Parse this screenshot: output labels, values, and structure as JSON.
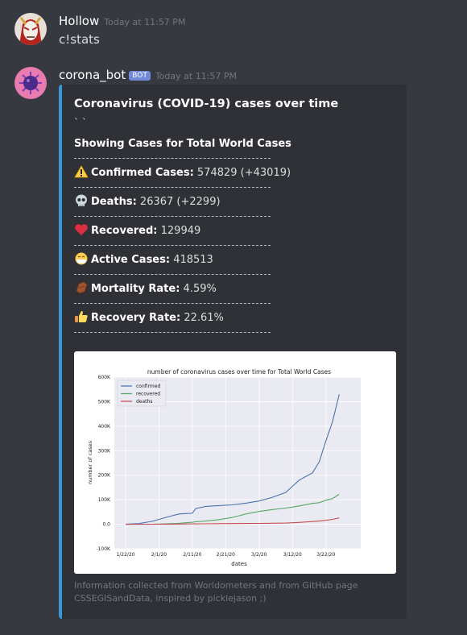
{
  "message1": {
    "username": "Hollow",
    "timestamp": "Today at 11:57 PM",
    "text": "c!stats"
  },
  "message2": {
    "username": "corona_bot",
    "bot_tag": "BOT",
    "timestamp": "Today at 11:57 PM"
  },
  "embed": {
    "accent_color": "#3498db",
    "title": "Coronavirus (COVID-19) cases over time",
    "backticks": "` `",
    "showing": "Showing Cases for Total World Cases",
    "stats": [
      {
        "icon": "warning-icon",
        "label": "Confirmed Cases:",
        "value": " 574829 (+43019)"
      },
      {
        "icon": "skull-icon",
        "label": "Deaths:",
        "value": " 26367 (+2299)"
      },
      {
        "icon": "heart-icon",
        "label": "Recovered:",
        "value": " 129949"
      },
      {
        "icon": "mask-face-icon",
        "label": "Active Cases:",
        "value": " 418513"
      },
      {
        "icon": "coffin-icon",
        "label": "Mortality Rate:",
        "value": " 4.59%"
      },
      {
        "icon": "thumbs-up-icon",
        "label": "Recovery Rate:",
        "value": " 22.61%"
      }
    ],
    "footer_line1": "Information collected from Worldometers and from GitHub page",
    "footer_line2": "CSSEGISandData, inspired by picklejason ;)"
  },
  "chart_data": {
    "type": "line",
    "title": "number of coronavirus cases over time for Total World Cases",
    "xlabel": "dates",
    "ylabel": "number of cases",
    "x_ticks": [
      "1/22/20",
      "2/1/20",
      "2/11/20",
      "2/21/20",
      "3/2/20",
      "3/12/20",
      "3/22/20"
    ],
    "y_ticks": [
      "600K",
      "500K",
      "400K",
      "300K",
      "200K",
      "100K",
      "0.0",
      "-100K"
    ],
    "ylim": [
      -100000,
      600000
    ],
    "legend_position": "top-left",
    "x_days": [
      0,
      4,
      8,
      12,
      16,
      20,
      21,
      24,
      28,
      32,
      36,
      40,
      44,
      48,
      50,
      52,
      56,
      58,
      60,
      62,
      64
    ],
    "series": [
      {
        "name": "confirmed",
        "color": "#4c72b0",
        "values": [
          555,
          2800,
          12000,
          28000,
          42000,
          45000,
          64000,
          73000,
          76000,
          79000,
          86000,
          95000,
          110000,
          130000,
          155000,
          180000,
          210000,
          255000,
          340000,
          420000,
          530000
        ]
      },
      {
        "name": "recovered",
        "color": "#55a868",
        "values": [
          28,
          50,
          300,
          1500,
          4000,
          8000,
          10000,
          13000,
          19000,
          28000,
          42000,
          52000,
          60000,
          66000,
          70000,
          75000,
          85000,
          88000,
          98000,
          105000,
          122000
        ]
      },
      {
        "name": "deaths",
        "color": "#c44e52",
        "values": [
          17,
          80,
          300,
          600,
          1000,
          1400,
          1600,
          2000,
          2400,
          2800,
          3100,
          3500,
          4200,
          5000,
          6000,
          7500,
          11000,
          13000,
          16000,
          20000,
          26000
        ]
      }
    ]
  }
}
